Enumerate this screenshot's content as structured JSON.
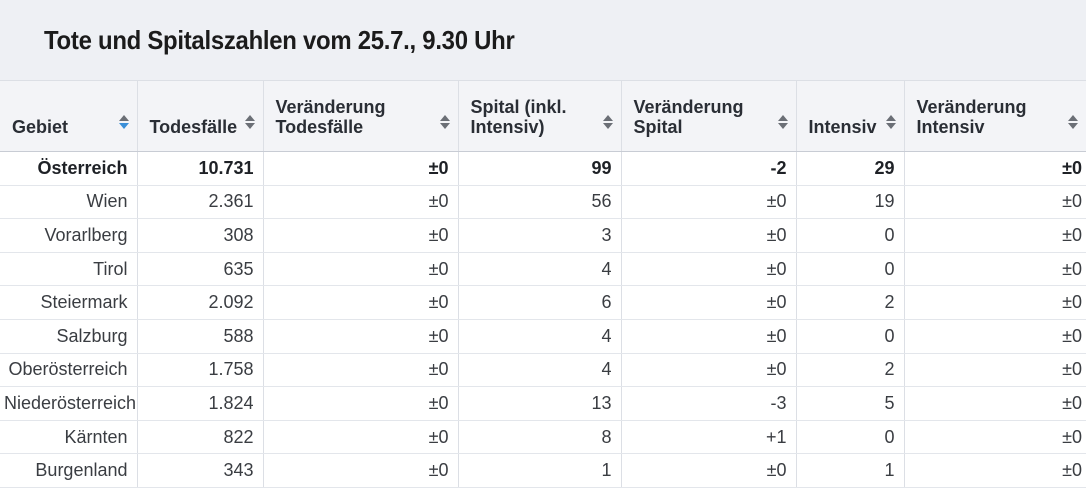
{
  "title": "Tote und Spitalszahlen vom 25.7., 9.30 Uhr",
  "columns": [
    {
      "label": "Gebiet"
    },
    {
      "label": "Todesfälle"
    },
    {
      "label": "Veränderung\nTodesfälle"
    },
    {
      "label": "Spital (inkl.\nIntensiv)"
    },
    {
      "label": "Veränderung\nSpital"
    },
    {
      "label": "Intensiv"
    },
    {
      "label": "Veränderung\nIntensiv"
    }
  ],
  "sort": {
    "column": "Gebiet",
    "direction": "descending"
  },
  "rows": [
    {
      "gebiet": "Österreich",
      "todesfaelle": "10.731",
      "veraenderung_todesfaelle": "±0",
      "spital": "99",
      "veraenderung_spital": "-2",
      "intensiv": "29",
      "veraenderung_intensiv": "±0"
    },
    {
      "gebiet": "Wien",
      "todesfaelle": "2.361",
      "veraenderung_todesfaelle": "±0",
      "spital": "56",
      "veraenderung_spital": "±0",
      "intensiv": "19",
      "veraenderung_intensiv": "±0"
    },
    {
      "gebiet": "Vorarlberg",
      "todesfaelle": "308",
      "veraenderung_todesfaelle": "±0",
      "spital": "3",
      "veraenderung_spital": "±0",
      "intensiv": "0",
      "veraenderung_intensiv": "±0"
    },
    {
      "gebiet": "Tirol",
      "todesfaelle": "635",
      "veraenderung_todesfaelle": "±0",
      "spital": "4",
      "veraenderung_spital": "±0",
      "intensiv": "0",
      "veraenderung_intensiv": "±0"
    },
    {
      "gebiet": "Steiermark",
      "todesfaelle": "2.092",
      "veraenderung_todesfaelle": "±0",
      "spital": "6",
      "veraenderung_spital": "±0",
      "intensiv": "2",
      "veraenderung_intensiv": "±0"
    },
    {
      "gebiet": "Salzburg",
      "todesfaelle": "588",
      "veraenderung_todesfaelle": "±0",
      "spital": "4",
      "veraenderung_spital": "±0",
      "intensiv": "0",
      "veraenderung_intensiv": "±0"
    },
    {
      "gebiet": "Oberösterreich",
      "todesfaelle": "1.758",
      "veraenderung_todesfaelle": "±0",
      "spital": "4",
      "veraenderung_spital": "±0",
      "intensiv": "2",
      "veraenderung_intensiv": "±0"
    },
    {
      "gebiet": "Niederösterreich",
      "todesfaelle": "1.824",
      "veraenderung_todesfaelle": "±0",
      "spital": "13",
      "veraenderung_spital": "-3",
      "intensiv": "5",
      "veraenderung_intensiv": "±0"
    },
    {
      "gebiet": "Kärnten",
      "todesfaelle": "822",
      "veraenderung_todesfaelle": "±0",
      "spital": "8",
      "veraenderung_spital": "+1",
      "intensiv": "0",
      "veraenderung_intensiv": "±0"
    },
    {
      "gebiet": "Burgenland",
      "todesfaelle": "343",
      "veraenderung_todesfaelle": "±0",
      "spital": "1",
      "veraenderung_spital": "±0",
      "intensiv": "1",
      "veraenderung_intensiv": "±0"
    }
  ],
  "colors": {
    "sort_active": "#3a8fd8",
    "header_bg": "#f3f4f7",
    "title_bg": "#eef0f4"
  }
}
